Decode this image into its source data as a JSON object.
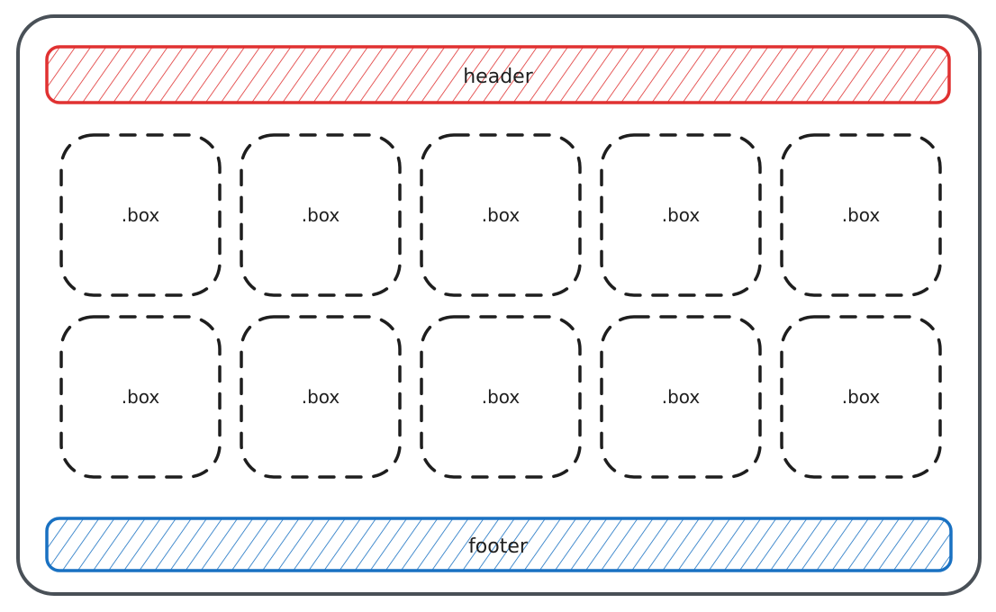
{
  "diagram": {
    "colors": {
      "container_stroke": "#495057",
      "header_stroke": "#e03131",
      "footer_stroke": "#1971c2",
      "box_stroke": "#1e1e1e",
      "text": "#1e1e1e"
    },
    "header": {
      "label": "header"
    },
    "footer": {
      "label": "footer"
    },
    "boxes": [
      {
        "label": ".box"
      },
      {
        "label": ".box"
      },
      {
        "label": ".box"
      },
      {
        "label": ".box"
      },
      {
        "label": ".box"
      },
      {
        "label": ".box"
      },
      {
        "label": ".box"
      },
      {
        "label": ".box"
      },
      {
        "label": ".box"
      },
      {
        "label": ".box"
      }
    ]
  }
}
